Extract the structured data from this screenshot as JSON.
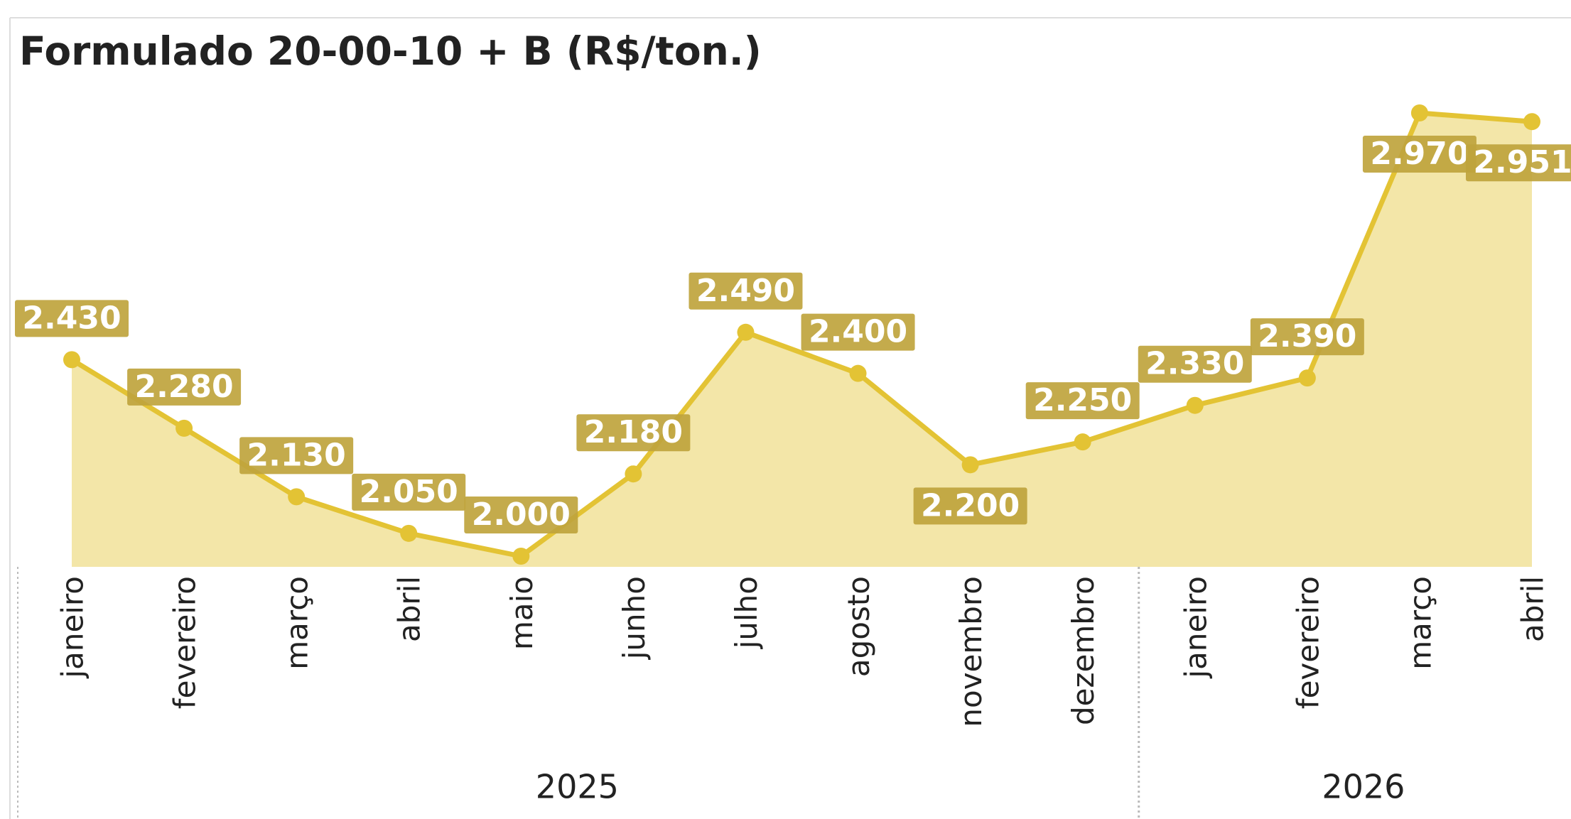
{
  "chart_data": {
    "type": "area",
    "title": "Formulado 20-00-10 + B (R$/ton.)",
    "groups": [
      {
        "label": "2025",
        "categories": [
          "janeiro",
          "fevereiro",
          "março",
          "abril",
          "maio",
          "junho",
          "julho",
          "agosto",
          "novembro",
          "dezembro"
        ]
      },
      {
        "label": "2026",
        "categories": [
          "janeiro",
          "fevereiro",
          "março",
          "abril"
        ]
      }
    ],
    "values": [
      2430,
      2280,
      2130,
      2050,
      2000,
      2180,
      2490,
      2400,
      2200,
      2250,
      2330,
      2390,
      2970,
      2951
    ],
    "value_labels": [
      "2.430",
      "2.280",
      "2.130",
      "2.050",
      "2.000",
      "2.180",
      "2.490",
      "2.400",
      "2.200",
      "2.250",
      "2.330",
      "2.390",
      "2.970",
      "2.951"
    ],
    "color": "#e3c334",
    "fill_color": "#f3e6a8",
    "label_color": "#bfa43d"
  }
}
